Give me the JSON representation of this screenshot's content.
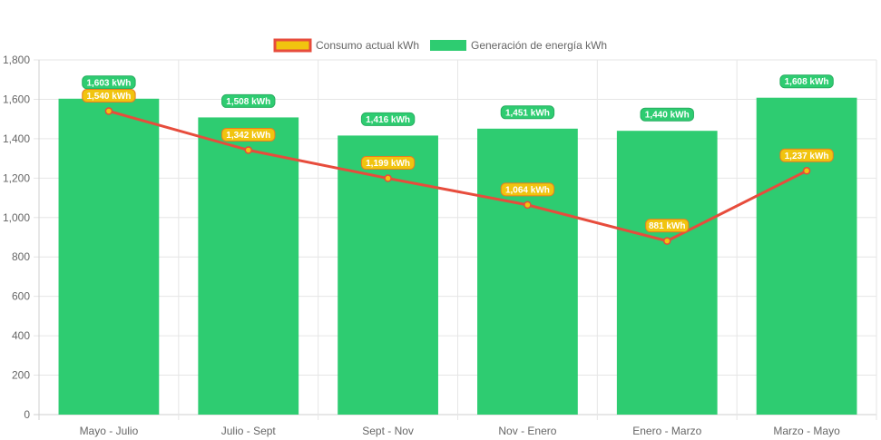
{
  "chart_data": {
    "type": "bar",
    "categories": [
      "Mayo - Julio",
      "Julio - Sept",
      "Sept - Nov",
      "Nov - Enero",
      "Enero - Marzo",
      "Marzo - Mayo"
    ],
    "series": [
      {
        "name": "Consumo actual kWh",
        "type": "line",
        "values": [
          1540,
          1342,
          1199,
          1064,
          881,
          1237
        ],
        "labels": [
          "1,540 kWh",
          "1,342 kWh",
          "1,199 kWh",
          "1,064 kWh",
          "881 kWh",
          "1,237 kWh"
        ],
        "color": "#e74c3c",
        "fill_color": "#f1c40f"
      },
      {
        "name": "Generación de energía kWh",
        "type": "bar",
        "values": [
          1603,
          1508,
          1416,
          1451,
          1440,
          1608
        ],
        "labels": [
          "1,603 kWh",
          "1,508 kWh",
          "1,416 kWh",
          "1,451 kWh",
          "1,440 kWh",
          "1,608 kWh"
        ],
        "color": "#2ecc71"
      }
    ],
    "y_ticks": [
      "0",
      "200",
      "400",
      "600",
      "800",
      "1,000",
      "1,200",
      "1,400",
      "1,600",
      "1,800"
    ],
    "ylim": [
      0,
      1800
    ],
    "grid": true,
    "legend_position": "top"
  }
}
